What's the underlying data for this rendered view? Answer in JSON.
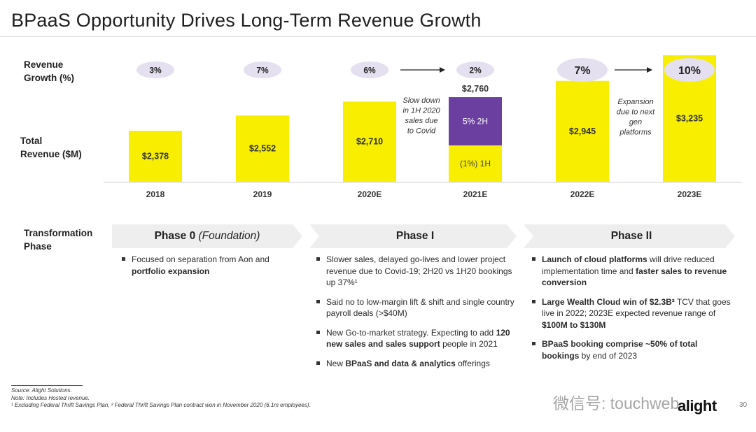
{
  "title": "BPaaS Opportunity Drives Long-Term Revenue Growth",
  "row_labels": {
    "growth": [
      "Revenue",
      "Growth (%)"
    ],
    "revenue": [
      "Total",
      "Revenue ($M)"
    ],
    "phase": [
      "Transformation",
      "Phase"
    ]
  },
  "colors": {
    "bar": "#f7ee00",
    "segment_2h": "#6b3fa0",
    "pill": "#e4e0ef",
    "phase": "#eeeeee"
  },
  "chart_data": {
    "type": "bar",
    "categories": [
      "2018",
      "2019",
      "2020E",
      "2021E",
      "2022E",
      "2023E"
    ],
    "values": [
      2378,
      2552,
      2710,
      2760,
      2945,
      3235
    ],
    "value_labels": [
      "$2,378",
      "$2,552",
      "$2,710",
      "$2,760",
      "$2,945",
      "$3,235"
    ],
    "growth_labels": [
      "3%",
      "7%",
      "6%",
      "2%",
      "7%",
      "10%"
    ],
    "stacked_2021E": [
      {
        "name": "(1%) 1H",
        "color": "#f7ee00"
      },
      {
        "name": "5% 2H",
        "color": "#6b3fa0"
      }
    ],
    "annotations": [
      "Slow down in 1H 2020 sales due to Covid",
      "Expansion due to next gen platforms"
    ]
  },
  "phases": [
    {
      "title": "Phase 0",
      "subtitle": "(Foundation)",
      "bullets": [
        [
          "Focused on separation from Aon and ",
          "portfolio expansion",
          ""
        ]
      ]
    },
    {
      "title": "Phase I",
      "subtitle": "",
      "bullets": [
        [
          "Slower sales, delayed go-lives and lower project revenue due to Covid-19; 2H20 vs 1H20 bookings up 37%¹",
          "",
          ""
        ],
        [
          "Said no to low-margin lift & shift and single country payroll deals (>$40M)",
          "",
          ""
        ],
        [
          "New Go-to-market strategy. Expecting to add ",
          "120 new sales and sales support",
          " people in 2021"
        ],
        [
          "New ",
          "BPaaS and data & analytics",
          " offerings"
        ]
      ]
    },
    {
      "title": "Phase II",
      "subtitle": "",
      "bullets": [
        [
          "",
          "Launch of cloud platforms",
          " will drive reduced implementation time and ",
          "faster sales to revenue conversion"
        ],
        [
          "",
          "Large Wealth Cloud win of $2.3B²",
          " TCV that goes live in 2022; 2023E expected revenue range of ",
          "$100M to $130M"
        ],
        [
          "",
          "BPaaS booking comprise ~50% of total bookings",
          " by end of 2023"
        ]
      ]
    }
  ],
  "footer": {
    "source": "Source: Alight Solutions.",
    "note": "Note: Includes Hosted revenue.",
    "footnote": "¹ Excluding Federal Thrift Savings Plan, ² Federal Thrift Savings Plan contract won in November 2020 (6.1m employees)."
  },
  "watermark": "微信号: touchweb",
  "logo": "alight",
  "page_number": "30"
}
